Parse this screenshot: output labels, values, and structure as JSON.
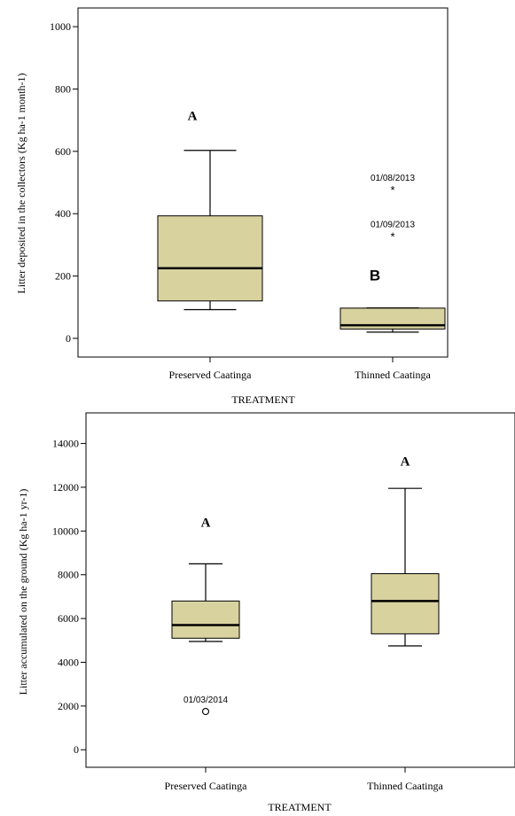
{
  "chart_data": [
    {
      "type": "boxplot",
      "title": "",
      "xlabel": "TREATMENT",
      "ylabel": "Litter deposited in the collectors (Kg ha-1 month-1)",
      "ylim": [
        -60,
        1060
      ],
      "yticks": [
        0,
        200,
        400,
        600,
        800,
        1000
      ],
      "categories": [
        "Preserved Caatinga",
        "Thinned Caatinga"
      ],
      "boxes": [
        {
          "category": "Preserved Caatinga",
          "whisker_low": 92,
          "q1": 120,
          "median": 225,
          "q3": 393,
          "whisker_high": 603,
          "letter": "A",
          "letter_y": 715,
          "letter_style": "serif"
        },
        {
          "category": "Thinned Caatinga",
          "whisker_low": 20,
          "q1": 30,
          "median": 42,
          "q3": 97,
          "whisker_high": 98,
          "letter": "B",
          "letter_y": 200,
          "letter_style": "sans"
        }
      ],
      "outliers": [
        {
          "category": "Thinned Caatinga",
          "value": 477,
          "marker": "star",
          "label": "01/08/2013"
        },
        {
          "category": "Thinned Caatinga",
          "value": 328,
          "marker": "star",
          "label": "01/09/2013"
        }
      ],
      "box_color": "#d8d29f",
      "grid": false
    },
    {
      "type": "boxplot",
      "title": "",
      "xlabel": "TREATMENT",
      "ylabel": "Litter accumulated on the ground (Kg ha-1 yr-1)",
      "ylim": [
        -800,
        15400
      ],
      "yticks": [
        0,
        2000,
        4000,
        6000,
        8000,
        10000,
        12000,
        14000
      ],
      "categories": [
        "Preserved Caatinga",
        "Thinned Caatinga"
      ],
      "boxes": [
        {
          "category": "Preserved Caatinga",
          "whisker_low": 4950,
          "q1": 5100,
          "median": 5700,
          "q3": 6800,
          "whisker_high": 8500,
          "letter": "A",
          "letter_y": 10400,
          "letter_style": "serif"
        },
        {
          "category": "Thinned Caatinga",
          "whisker_low": 4750,
          "q1": 5300,
          "median": 6800,
          "q3": 8050,
          "whisker_high": 11950,
          "letter": "A",
          "letter_y": 13200,
          "letter_style": "serif"
        }
      ],
      "outliers": [
        {
          "category": "Preserved Caatinga",
          "value": 1750,
          "marker": "circle",
          "label": "01/03/2014"
        }
      ],
      "box_color": "#d8d29f",
      "grid": false
    }
  ]
}
